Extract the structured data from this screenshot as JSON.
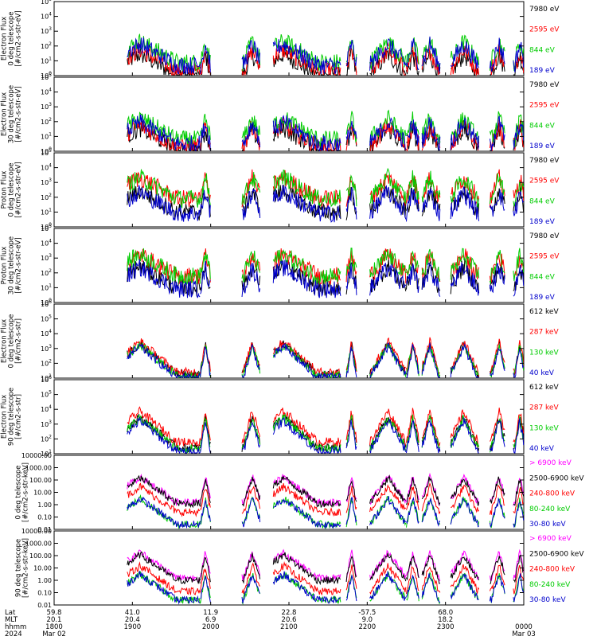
{
  "figure": {
    "panels": [
      {
        "ylabel": [
          "TED",
          "Electron Flux",
          "0 deg telescope",
          "[#/cm2-s-str-eV]"
        ],
        "scale": "log",
        "ylim": [
          1,
          100000
        ],
        "yticks": [
          {
            "mant": "10",
            "exp": "0"
          },
          {
            "mant": "10",
            "exp": "1"
          },
          {
            "mant": "10",
            "exp": "2"
          },
          {
            "mant": "10",
            "exp": "3"
          },
          {
            "mant": "10",
            "exp": "4"
          },
          {
            "mant": "10",
            "exp": "5"
          }
        ],
        "legend": [
          {
            "text": "7980 eV",
            "color": "#000000"
          },
          {
            "text": "2595 eV",
            "color": "#ff0000"
          },
          {
            "text": "844 eV",
            "color": "#00cc00"
          },
          {
            "text": "189 eV",
            "color": "#0000cc"
          }
        ]
      },
      {
        "ylabel": [
          "TED",
          "Electron Flux",
          "30 deg telescope",
          "[#/cm2-s-str-eV]"
        ],
        "scale": "log",
        "ylim": [
          1,
          100000
        ],
        "yticks": [
          {
            "mant": "10",
            "exp": "0"
          },
          {
            "mant": "10",
            "exp": "1"
          },
          {
            "mant": "10",
            "exp": "2"
          },
          {
            "mant": "10",
            "exp": "3"
          },
          {
            "mant": "10",
            "exp": "4"
          },
          {
            "mant": "10",
            "exp": "5"
          }
        ],
        "legend": [
          {
            "text": "7980 eV",
            "color": "#000000"
          },
          {
            "text": "2595 eV",
            "color": "#ff0000"
          },
          {
            "text": "844 eV",
            "color": "#00cc00"
          },
          {
            "text": "189 eV",
            "color": "#0000cc"
          }
        ]
      },
      {
        "ylabel": [
          "TED",
          "Proton Flux",
          "0 deg telescope",
          "[#/cm2-s-str-eV]"
        ],
        "scale": "log",
        "ylim": [
          1,
          100000
        ],
        "yticks": [
          {
            "mant": "10",
            "exp": "0"
          },
          {
            "mant": "10",
            "exp": "1"
          },
          {
            "mant": "10",
            "exp": "2"
          },
          {
            "mant": "10",
            "exp": "3"
          },
          {
            "mant": "10",
            "exp": "4"
          },
          {
            "mant": "10",
            "exp": "5"
          }
        ],
        "legend": [
          {
            "text": "7980 eV",
            "color": "#000000"
          },
          {
            "text": "2595 eV",
            "color": "#ff0000"
          },
          {
            "text": "844 eV",
            "color": "#00cc00"
          },
          {
            "text": "189 eV",
            "color": "#0000cc"
          }
        ]
      },
      {
        "ylabel": [
          "TED",
          "Proton Flux",
          "30 deg telescope",
          "[#/cm2-s-str-eV]"
        ],
        "scale": "log",
        "ylim": [
          1,
          100000
        ],
        "yticks": [
          {
            "mant": "10",
            "exp": "0"
          },
          {
            "mant": "10",
            "exp": "1"
          },
          {
            "mant": "10",
            "exp": "2"
          },
          {
            "mant": "10",
            "exp": "3"
          },
          {
            "mant": "10",
            "exp": "4"
          },
          {
            "mant": "10",
            "exp": "5"
          }
        ],
        "legend": [
          {
            "text": "7980 eV",
            "color": "#000000"
          },
          {
            "text": "2595 eV",
            "color": "#ff0000"
          },
          {
            "text": "844 eV",
            "color": "#00cc00"
          },
          {
            "text": "189 eV",
            "color": "#0000cc"
          }
        ]
      },
      {
        "ylabel": [
          "MEPED",
          "Electron Flux",
          "0 deg telescope",
          "[#/cm2-s-str]"
        ],
        "scale": "log",
        "ylim": [
          10,
          1000000
        ],
        "yticks": [
          {
            "mant": "10",
            "exp": "1"
          },
          {
            "mant": "10",
            "exp": "2"
          },
          {
            "mant": "10",
            "exp": "3"
          },
          {
            "mant": "10",
            "exp": "4"
          },
          {
            "mant": "10",
            "exp": "5"
          },
          {
            "mant": "10",
            "exp": "6"
          }
        ],
        "legend": [
          {
            "text": "612 keV",
            "color": "#000000"
          },
          {
            "text": "287 keV",
            "color": "#ff0000"
          },
          {
            "text": "130 keV",
            "color": "#00cc00"
          },
          {
            "text": "40 keV",
            "color": "#0000cc"
          }
        ]
      },
      {
        "ylabel": [
          "MEPED",
          "Electron Flux",
          "90 deg telescope",
          "[#/cm2-s-str]"
        ],
        "scale": "log",
        "ylim": [
          10,
          1000000
        ],
        "yticks": [
          {
            "mant": "10",
            "exp": "1"
          },
          {
            "mant": "10",
            "exp": "2"
          },
          {
            "mant": "10",
            "exp": "3"
          },
          {
            "mant": "10",
            "exp": "4"
          },
          {
            "mant": "10",
            "exp": "5"
          },
          {
            "mant": "10",
            "exp": "6"
          }
        ],
        "legend": [
          {
            "text": "612 keV",
            "color": "#000000"
          },
          {
            "text": "287 keV",
            "color": "#ff0000"
          },
          {
            "text": "130 keV",
            "color": "#00cc00"
          },
          {
            "text": "40 keV",
            "color": "#0000cc"
          }
        ]
      },
      {
        "ylabel": [
          "0 deg telescope",
          "[#/cm2-s-str-keV]"
        ],
        "scale": "log",
        "ylim": [
          0.01,
          10000
        ],
        "yticks": [
          {
            "mant": "0.01"
          },
          {
            "mant": "0.10"
          },
          {
            "mant": "1.00"
          },
          {
            "mant": "10.00"
          },
          {
            "mant": "100.00"
          },
          {
            "mant": "1000.00"
          },
          {
            "mant": "10000.00"
          }
        ],
        "legend": [
          {
            "text": "> 6900 keV",
            "color": "#ff00ff"
          },
          {
            "text": "2500-6900 keV",
            "color": "#000000"
          },
          {
            "text": "240-800 keV",
            "color": "#ff0000"
          },
          {
            "text": "80-240 keV",
            "color": "#00cc00"
          },
          {
            "text": "30-80 keV",
            "color": "#0000cc"
          }
        ]
      },
      {
        "ylabel": [
          "90 deg telescope",
          "[#/cm2-s-str-keV]"
        ],
        "scale": "log",
        "ylim": [
          0.01,
          10000
        ],
        "yticks": [
          {
            "mant": "0.01"
          },
          {
            "mant": "0.10"
          },
          {
            "mant": "1.00"
          },
          {
            "mant": "10.00"
          },
          {
            "mant": "100.00"
          },
          {
            "mant": "1000.00"
          },
          {
            "mant": "10000.00"
          }
        ],
        "legend": [
          {
            "text": "> 6900 keV",
            "color": "#ff00ff"
          },
          {
            "text": "2500-6900 keV",
            "color": "#000000"
          },
          {
            "text": "240-800 keV",
            "color": "#ff0000"
          },
          {
            "text": "80-240 keV",
            "color": "#00cc00"
          },
          {
            "text": "30-80 keV",
            "color": "#0000cc"
          }
        ]
      }
    ],
    "axis": {
      "row_labels": [
        "Lat",
        "MLT",
        "hhmm",
        "2024"
      ],
      "ticks": [
        {
          "lat": "59.8",
          "mlt": "20.1",
          "hhmm": "1800",
          "date": "Mar 02"
        },
        {
          "lat": "41.0",
          "mlt": "20.4",
          "hhmm": "1900",
          "date": ""
        },
        {
          "lat": "11.9",
          "mlt": "6.9",
          "hhmm": "2000",
          "date": ""
        },
        {
          "lat": "22.8",
          "mlt": "20.6",
          "hhmm": "2100",
          "date": ""
        },
        {
          "lat": "-57.5",
          "mlt": "9.0",
          "hhmm": "2200",
          "date": ""
        },
        {
          "lat": "68.0",
          "mlt": "18.2",
          "hhmm": "2300",
          "date": ""
        },
        {
          "lat": "",
          "mlt": "",
          "hhmm": "0000",
          "date": "Mar 03"
        }
      ]
    }
  },
  "chart_data": {
    "type": "line",
    "x_unit": "UT hhmm",
    "x_range": [
      "1800",
      "0000"
    ],
    "passes": [
      {
        "start": "1856",
        "end": "1952",
        "peak": "1906"
      },
      {
        "start": "1952",
        "end": "2000",
        "peak": "1956"
      },
      {
        "start": "2024",
        "end": "2038",
        "peak": "2032"
      },
      {
        "start": "2048",
        "end": "2140",
        "peak": "2056"
      },
      {
        "start": "2144",
        "end": "2152",
        "peak": "2148"
      },
      {
        "start": "2202",
        "end": "2230",
        "peak": "2216"
      },
      {
        "start": "2230",
        "end": "2240",
        "peak": "2235"
      },
      {
        "start": "2242",
        "end": "2256",
        "peak": "2248"
      },
      {
        "start": "2304",
        "end": "2326",
        "peak": "2314"
      },
      {
        "start": "2334",
        "end": "2346",
        "peak": "2341"
      },
      {
        "start": "2352",
        "end": "0000",
        "peak": "2357"
      }
    ],
    "series_base_log10": {
      "ted_e0": [
        0.7,
        0.9,
        0.3,
        0.0
      ],
      "ted_e30": [
        0.5,
        0.8,
        0.3,
        0.1
      ],
      "ted_p0": [
        0.9,
        1.9,
        1.9,
        1.0
      ],
      "ted_p30": [
        0.9,
        1.8,
        1.8,
        1.0
      ],
      "meped_e0": [
        1.05,
        1.15,
        1.4,
        1.25
      ],
      "meped_e90": [
        1.15,
        1.35,
        1.8,
        1.4
      ],
      "meped_p0": [
        -1.6,
        -1.6,
        -0.6,
        0.1,
        0.2
      ],
      "meped_p90": [
        -1.6,
        -1.6,
        -0.9,
        0.0,
        0.2
      ]
    }
  }
}
